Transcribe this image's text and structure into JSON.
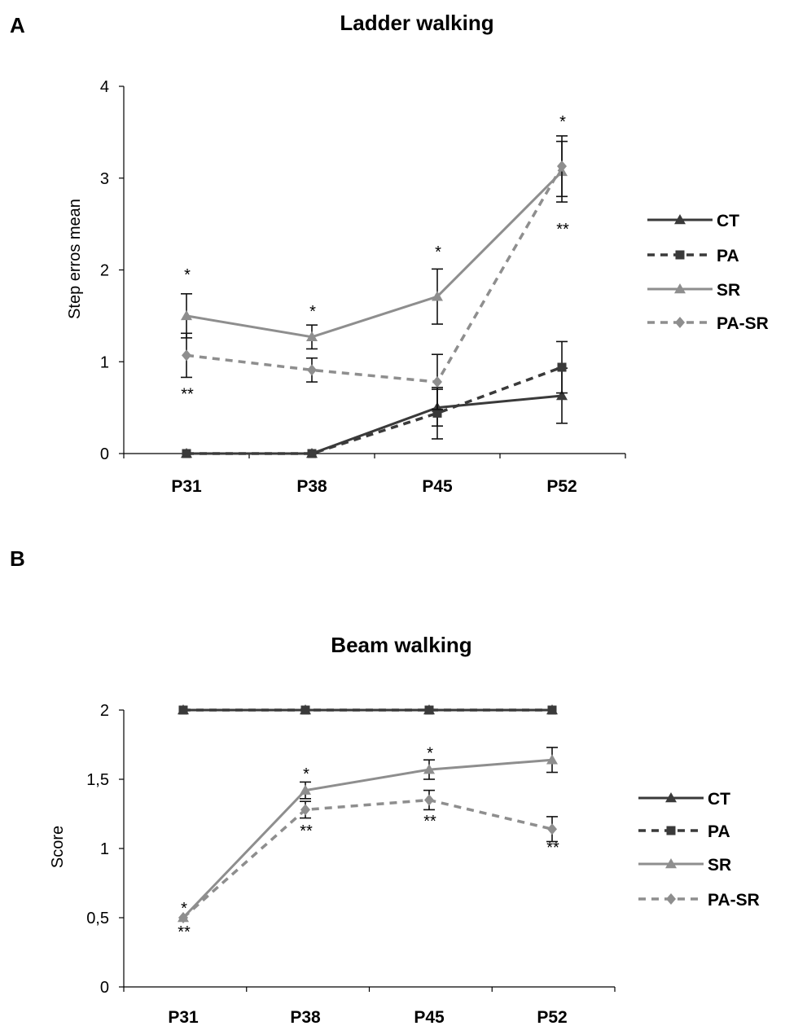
{
  "colors": {
    "CT": "#3a3a3a",
    "PA": "#3a3a3a",
    "SR": "#8e8e8e",
    "PA-SR": "#8e8e8e",
    "axis": "#000000"
  },
  "chart_data": [
    {
      "panel_letter": "A",
      "type": "line",
      "title": "Ladder walking",
      "xlabel": "",
      "ylabel": "Step erros mean",
      "categories": [
        "P31",
        "P38",
        "P45",
        "P52"
      ],
      "ylim": [
        0,
        4
      ],
      "yticks": [
        0,
        1,
        2,
        3,
        4
      ],
      "ytick_labels": [
        "0",
        "1",
        "2",
        "3",
        "4"
      ],
      "grid": false,
      "legend_position": "right",
      "series": [
        {
          "name": "CT",
          "line": "solid",
          "marker": "triangle",
          "values": [
            0,
            0,
            0.5,
            0.63
          ],
          "errors": [
            0,
            0,
            0.2,
            0.3
          ]
        },
        {
          "name": "PA",
          "line": "dashed",
          "marker": "square",
          "values": [
            0,
            0,
            0.44,
            0.94
          ],
          "errors": [
            0,
            0,
            0.28,
            0.28
          ]
        },
        {
          "name": "SR",
          "line": "solid",
          "marker": "triangle",
          "values": [
            1.5,
            1.27,
            1.71,
            3.07
          ],
          "errors": [
            0.24,
            0.13,
            0.3,
            0.33
          ]
        },
        {
          "name": "PA-SR",
          "line": "dashed",
          "marker": "diamond",
          "values": [
            1.07,
            0.91,
            0.78,
            3.13
          ],
          "errors": [
            0.24,
            0.13,
            0.3,
            0.33
          ]
        }
      ],
      "annotations": [
        {
          "text": "*",
          "category": "P31",
          "y": 1.95
        },
        {
          "text": "**",
          "category": "P31",
          "y": 0.65
        },
        {
          "text": "*",
          "category": "P38",
          "y": 1.55
        },
        {
          "text": "*",
          "category": "P45",
          "y": 2.2
        },
        {
          "text": "*",
          "category": "P52",
          "y": 3.62
        },
        {
          "text": "**",
          "category": "P52",
          "y": 2.45
        }
      ]
    },
    {
      "panel_letter": "B",
      "type": "line",
      "title": "Beam walking",
      "xlabel": "",
      "ylabel": "Score",
      "categories": [
        "P31",
        "P38",
        "P45",
        "P52"
      ],
      "ylim": [
        0,
        2
      ],
      "yticks": [
        0,
        0.5,
        1,
        1.5,
        2
      ],
      "ytick_labels": [
        "0",
        "0,5",
        "1",
        "1,5",
        "2"
      ],
      "grid": false,
      "legend_position": "right",
      "series": [
        {
          "name": "CT",
          "line": "solid",
          "marker": "triangle",
          "values": [
            2,
            2,
            2,
            2
          ],
          "errors": [
            0,
            0,
            0,
            0
          ]
        },
        {
          "name": "PA",
          "line": "dashed",
          "marker": "square",
          "values": [
            2,
            2,
            2,
            2
          ],
          "errors": [
            0,
            0,
            0,
            0
          ]
        },
        {
          "name": "SR",
          "line": "solid",
          "marker": "triangle",
          "values": [
            0.5,
            1.42,
            1.57,
            1.64
          ],
          "errors": [
            0,
            0.06,
            0.07,
            0.09
          ]
        },
        {
          "name": "PA-SR",
          "line": "dashed",
          "marker": "diamond",
          "values": [
            0.5,
            1.28,
            1.35,
            1.14
          ],
          "errors": [
            0,
            0.06,
            0.07,
            0.09
          ]
        }
      ],
      "annotations": [
        {
          "text": "*",
          "category": "P31",
          "y": 0.57
        },
        {
          "text": "**",
          "category": "P31",
          "y": 0.4
        },
        {
          "text": "*",
          "category": "P38",
          "y": 1.54
        },
        {
          "text": "**",
          "category": "P38",
          "y": 1.13
        },
        {
          "text": "*",
          "category": "P45",
          "y": 1.69
        },
        {
          "text": "**",
          "category": "P45",
          "y": 1.2
        },
        {
          "text": "**",
          "category": "P52",
          "y": 1.01
        }
      ]
    }
  ]
}
